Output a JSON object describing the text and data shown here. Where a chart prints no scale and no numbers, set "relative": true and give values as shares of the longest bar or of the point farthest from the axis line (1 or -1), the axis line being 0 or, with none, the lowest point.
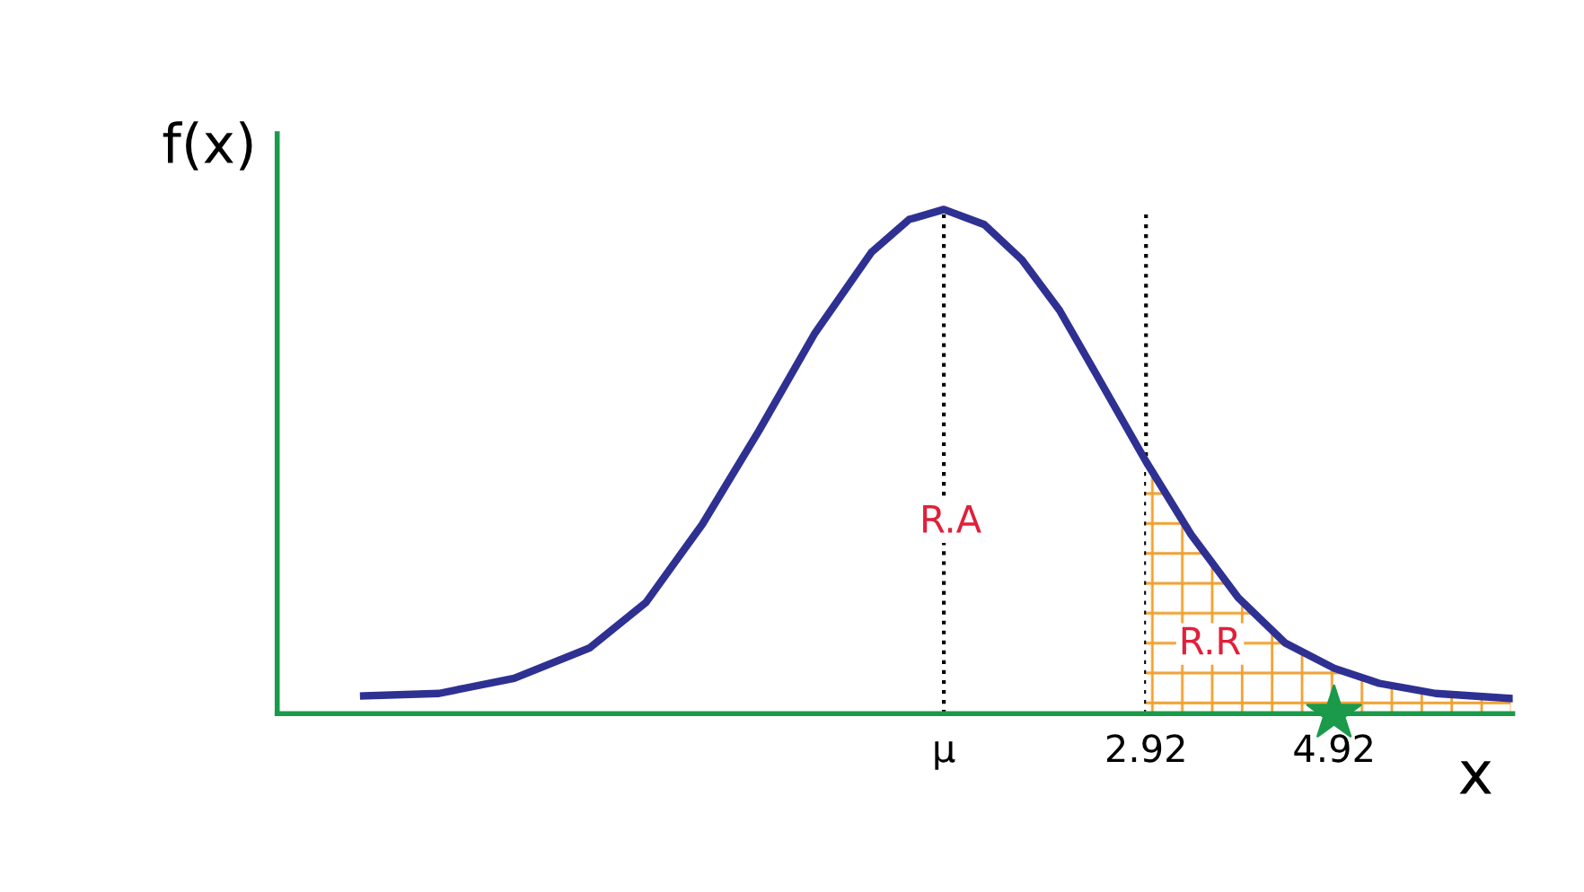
{
  "chart_data": {
    "type": "line",
    "relative": true,
    "xlabel": "x",
    "ylabel": "f(x)",
    "xlim": [
      -6.32,
      6.82
    ],
    "xticks": [
      {
        "value": 0.77,
        "label": "μ"
      },
      2.92,
      4.92
    ],
    "tick_labels": "x",
    "grid": false,
    "legend": false,
    "marker": "none",
    "line_style": "solid",
    "series": [
      {
        "type": "area",
        "color": "#f0a030",
        "x": [
          2.92,
          3.4,
          3.9,
          4.4,
          4.92,
          5.4,
          6.0,
          6.8
        ],
        "values": [
          0.5,
          0.355,
          0.23,
          0.14,
          0.09,
          0.06,
          0.04,
          0.03
        ]
      },
      {
        "color": "#2e3192",
        "x": [
          -5.4,
          -4.6,
          -3.8,
          -3.0,
          -2.4,
          -1.8,
          -1.2,
          -0.6,
          0,
          0.4,
          0.77,
          1.2,
          1.6,
          2.0,
          2.4,
          2.92,
          3.4,
          3.9,
          4.4,
          4.92,
          5.4,
          6.0,
          6.8
        ],
        "values": [
          0.035,
          0.04,
          0.07,
          0.13,
          0.22,
          0.375,
          0.56,
          0.755,
          0.915,
          0.98,
          1,
          0.97,
          0.9,
          0.8,
          0.67,
          0.5,
          0.355,
          0.23,
          0.14,
          0.09,
          0.06,
          0.04,
          0.03
        ]
      },
      {
        "type": "scatter",
        "marker": "star",
        "color": "#1a9a4a",
        "x": [
          4.92
        ],
        "values": [
          0
        ]
      }
    ],
    "ref_lines": [
      {
        "axis": "x",
        "value": 0.77,
        "color": "#000000",
        "line_style": "dotted"
      },
      {
        "axis": "x",
        "value": 2.92,
        "color": "#000000",
        "line_style": "dotted"
      }
    ],
    "annotations": [
      "R.A",
      "R.R"
    ]
  }
}
